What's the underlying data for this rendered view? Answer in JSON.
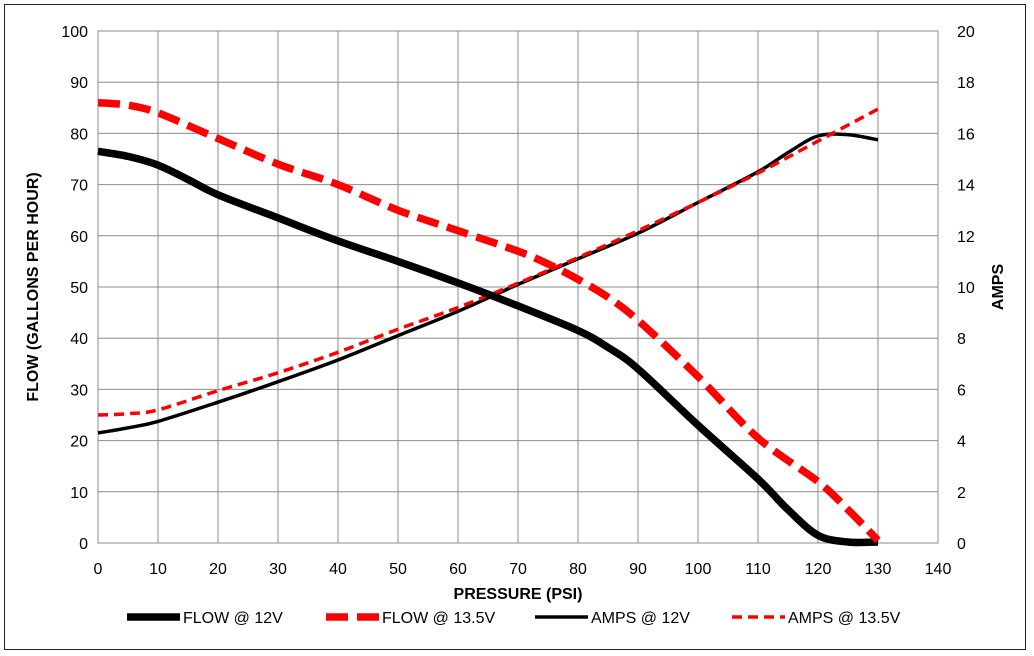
{
  "chart_data": {
    "type": "line",
    "xlabel": "PRESSURE (PSI)",
    "ylabel_left": "FLOW (GALLONS PER HOUR)",
    "ylabel_right": "AMPS",
    "xlim": [
      0,
      140
    ],
    "ylim_left": [
      0,
      100
    ],
    "ylim_right": [
      0,
      20
    ],
    "x_ticks": [
      "0",
      "10",
      "20",
      "30",
      "40",
      "50",
      "60",
      "70",
      "80",
      "90",
      "100",
      "110",
      "120",
      "130",
      "140"
    ],
    "y_left_ticks": [
      "0",
      "10",
      "20",
      "30",
      "40",
      "50",
      "60",
      "70",
      "80",
      "90",
      "100"
    ],
    "y_right_ticks": [
      "0",
      "2",
      "4",
      "6",
      "8",
      "10",
      "12",
      "14",
      "16",
      "18",
      "20"
    ],
    "grid": true,
    "legend_position": "bottom",
    "series": [
      {
        "name": "FLOW @ 12V",
        "axis": "left",
        "color": "#000000",
        "style": "solid-thick",
        "x": [
          0,
          5,
          10,
          15,
          20,
          30,
          40,
          50,
          60,
          70,
          80,
          85,
          90,
          100,
          110,
          115,
          120,
          125,
          130
        ],
        "y": [
          76.5,
          75.5,
          73.8,
          71,
          68,
          63.5,
          59,
          55,
          50.8,
          46.3,
          41.5,
          38.2,
          34,
          23,
          12.5,
          6.5,
          1.5,
          0.2,
          0.2
        ]
      },
      {
        "name": "FLOW @ 13.5V",
        "axis": "left",
        "color": "#ff0000",
        "style": "dashed-thick",
        "x": [
          0,
          5,
          10,
          20,
          30,
          40,
          50,
          60,
          70,
          75,
          80,
          85,
          90,
          100,
          110,
          120,
          125,
          130
        ],
        "y": [
          86,
          85.5,
          84,
          79,
          74,
          70,
          65,
          61,
          57,
          54.5,
          51.5,
          48,
          43.5,
          32.5,
          20.5,
          12,
          6.5,
          0.5
        ]
      },
      {
        "name": "AMPS @ 12V",
        "axis": "right",
        "color": "#000000",
        "style": "solid",
        "x": [
          0,
          5,
          10,
          20,
          30,
          40,
          50,
          60,
          70,
          80,
          90,
          100,
          110,
          115,
          120,
          125,
          130
        ],
        "y": [
          4.3,
          4.5,
          4.75,
          5.5,
          6.3,
          7.15,
          8.1,
          9.05,
          10.1,
          11.1,
          12.1,
          13.3,
          14.5,
          15.25,
          15.9,
          15.95,
          15.75
        ]
      },
      {
        "name": "AMPS @ 13.5V",
        "axis": "right",
        "color": "#ff0000",
        "style": "dashed",
        "x": [
          0,
          5,
          10,
          20,
          30,
          40,
          50,
          60,
          70,
          80,
          90,
          100,
          110,
          120,
          130
        ],
        "y": [
          5.0,
          5.05,
          5.2,
          5.95,
          6.65,
          7.45,
          8.35,
          9.2,
          10.15,
          11.15,
          12.2,
          13.3,
          14.45,
          15.7,
          16.95
        ]
      }
    ]
  }
}
